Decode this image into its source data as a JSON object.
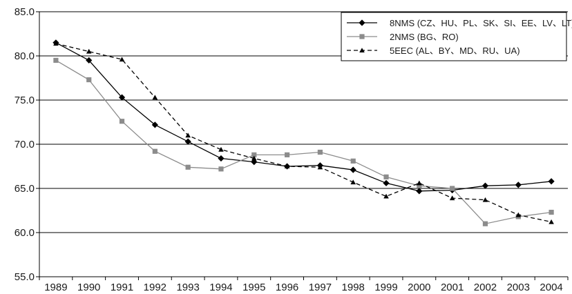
{
  "chart_data": {
    "type": "line",
    "title": "",
    "xlabel": "",
    "ylabel": "",
    "ylim": [
      55,
      85
    ],
    "yticks": [
      "55.0",
      "60.0",
      "65.0",
      "70.0",
      "75.0",
      "80.0",
      "85.0"
    ],
    "categories": [
      "1989",
      "1990",
      "1991",
      "1992",
      "1993",
      "1994",
      "1995",
      "1996",
      "1997",
      "1998",
      "1999",
      "2000",
      "2001",
      "2002",
      "2003",
      "2004"
    ],
    "grid": "horizontal",
    "legend": "top-right",
    "series": [
      {
        "name": "8NMS (CZ、HU、PL、SK、SI、EE、LV、LT)",
        "color": "#000000",
        "marker": "diamond",
        "dash": "solid",
        "values": [
          81.5,
          79.5,
          75.3,
          72.2,
          70.3,
          68.4,
          68.0,
          67.5,
          67.6,
          67.1,
          65.6,
          64.7,
          64.8,
          65.3,
          65.4,
          65.8
        ]
      },
      {
        "name": "2NMS (BG、RO)",
        "color": "#8c8c8c",
        "marker": "square",
        "dash": "solid",
        "values": [
          79.5,
          77.3,
          72.6,
          69.2,
          67.4,
          67.2,
          68.8,
          68.8,
          69.1,
          68.1,
          66.3,
          65.3,
          65.0,
          61.0,
          61.8,
          62.3
        ]
      },
      {
        "name": "5EEC (AL、BY、MD、RU、UA)",
        "color": "#000000",
        "marker": "triangle",
        "dash": "dashed",
        "values": [
          81.4,
          80.5,
          79.6,
          75.3,
          71.0,
          69.4,
          68.4,
          67.5,
          67.4,
          65.7,
          64.1,
          65.6,
          63.9,
          63.7,
          62.0,
          61.2
        ]
      }
    ]
  }
}
